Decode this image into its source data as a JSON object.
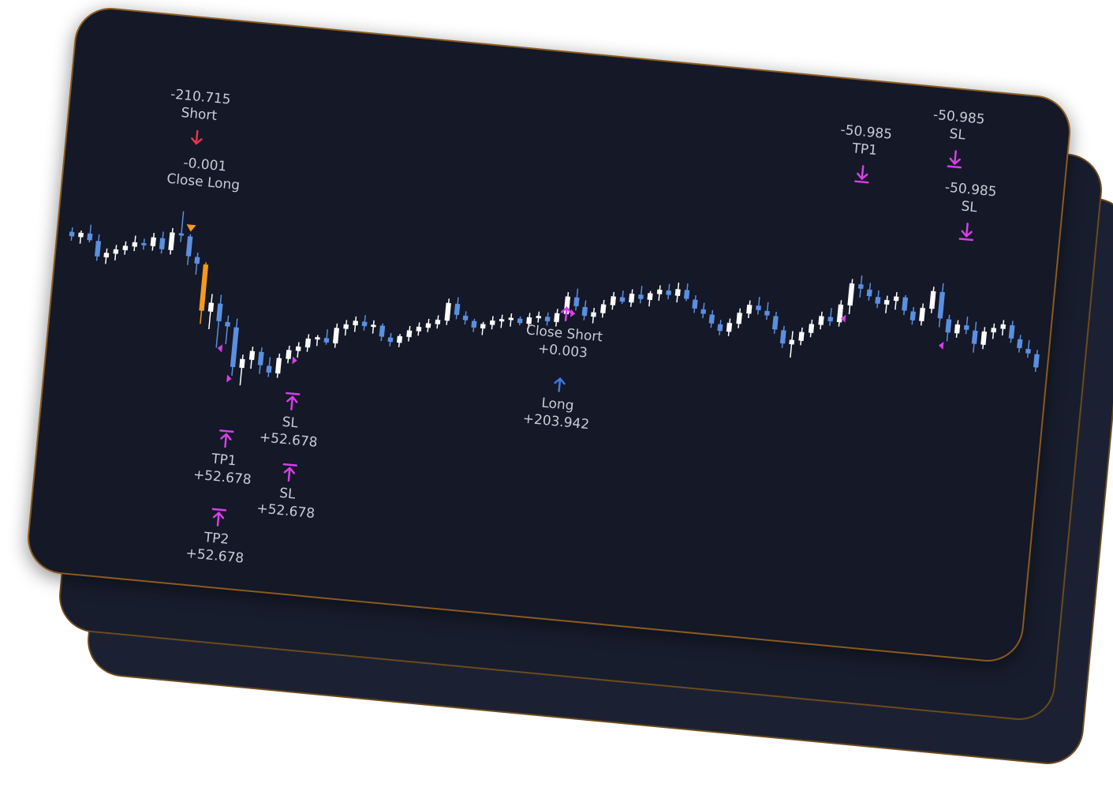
{
  "colors": {
    "background": "#141827",
    "bull": "#ffffff",
    "bear": "#5b8fe0",
    "signal_bar": "#f39a1e",
    "marker": "#d63fe8",
    "short_arrow": "#e8344a",
    "long_arrow": "#3a7be8",
    "text": "#c9ccd6",
    "border": "#8a5a1f"
  },
  "chart_data": {
    "type": "candlestick",
    "title": "",
    "xlabel": "",
    "ylabel": "",
    "grid": false,
    "legend": "none",
    "ylim": [
      0,
      100
    ],
    "candles": [
      {
        "o": 66,
        "h": 68,
        "l": 62,
        "c": 64
      },
      {
        "o": 64,
        "h": 67,
        "l": 61,
        "c": 66
      },
      {
        "o": 66,
        "h": 70,
        "l": 62,
        "c": 63
      },
      {
        "o": 63,
        "h": 66,
        "l": 54,
        "c": 56
      },
      {
        "o": 56,
        "h": 60,
        "l": 53,
        "c": 58
      },
      {
        "o": 58,
        "h": 62,
        "l": 55,
        "c": 60
      },
      {
        "o": 60,
        "h": 64,
        "l": 58,
        "c": 62
      },
      {
        "o": 62,
        "h": 67,
        "l": 60,
        "c": 64
      },
      {
        "o": 64,
        "h": 66,
        "l": 61,
        "c": 63
      },
      {
        "o": 63,
        "h": 69,
        "l": 61,
        "c": 67
      },
      {
        "o": 67,
        "h": 70,
        "l": 60,
        "c": 62
      },
      {
        "o": 62,
        "h": 72,
        "l": 60,
        "c": 70
      },
      {
        "o": 70,
        "h": 80,
        "l": 66,
        "c": 69
      },
      {
        "o": 69,
        "h": 70,
        "l": 56,
        "c": 60
      },
      {
        "o": 60,
        "h": 62,
        "l": 52,
        "c": 57
      },
      {
        "o": 57,
        "h": 58,
        "l": 30,
        "c": 36
      },
      {
        "o": 36,
        "h": 44,
        "l": 28,
        "c": 40
      },
      {
        "o": 40,
        "h": 44,
        "l": 20,
        "c": 32
      },
      {
        "o": 32,
        "h": 35,
        "l": 22,
        "c": 30
      },
      {
        "o": 30,
        "h": 34,
        "l": 8,
        "c": 12
      },
      {
        "o": 12,
        "h": 18,
        "l": 4,
        "c": 16
      },
      {
        "o": 16,
        "h": 22,
        "l": 12,
        "c": 20
      },
      {
        "o": 20,
        "h": 22,
        "l": 10,
        "c": 14
      },
      {
        "o": 14,
        "h": 18,
        "l": 9,
        "c": 11
      },
      {
        "o": 11,
        "h": 20,
        "l": 9,
        "c": 18
      },
      {
        "o": 18,
        "h": 24,
        "l": 16,
        "c": 22
      },
      {
        "o": 22,
        "h": 26,
        "l": 19,
        "c": 24
      },
      {
        "o": 24,
        "h": 30,
        "l": 22,
        "c": 28
      },
      {
        "o": 28,
        "h": 30,
        "l": 25,
        "c": 29
      },
      {
        "o": 29,
        "h": 33,
        "l": 26,
        "c": 27
      },
      {
        "o": 27,
        "h": 36,
        "l": 25,
        "c": 34
      },
      {
        "o": 34,
        "h": 38,
        "l": 31,
        "c": 36
      },
      {
        "o": 36,
        "h": 40,
        "l": 33,
        "c": 38
      },
      {
        "o": 38,
        "h": 41,
        "l": 34,
        "c": 36
      },
      {
        "o": 36,
        "h": 39,
        "l": 33,
        "c": 37
      },
      {
        "o": 37,
        "h": 38,
        "l": 30,
        "c": 32
      },
      {
        "o": 32,
        "h": 34,
        "l": 28,
        "c": 30
      },
      {
        "o": 30,
        "h": 34,
        "l": 28,
        "c": 33
      },
      {
        "o": 33,
        "h": 38,
        "l": 31,
        "c": 36
      },
      {
        "o": 36,
        "h": 40,
        "l": 34,
        "c": 38
      },
      {
        "o": 38,
        "h": 42,
        "l": 36,
        "c": 40
      },
      {
        "o": 40,
        "h": 44,
        "l": 38,
        "c": 42
      },
      {
        "o": 42,
        "h": 52,
        "l": 40,
        "c": 50
      },
      {
        "o": 50,
        "h": 53,
        "l": 43,
        "c": 45
      },
      {
        "o": 45,
        "h": 47,
        "l": 41,
        "c": 43
      },
      {
        "o": 43,
        "h": 44,
        "l": 38,
        "c": 40
      },
      {
        "o": 40,
        "h": 43,
        "l": 37,
        "c": 42
      },
      {
        "o": 42,
        "h": 46,
        "l": 40,
        "c": 44
      },
      {
        "o": 44,
        "h": 47,
        "l": 41,
        "c": 45
      },
      {
        "o": 45,
        "h": 48,
        "l": 42,
        "c": 46
      },
      {
        "o": 46,
        "h": 47,
        "l": 43,
        "c": 44
      },
      {
        "o": 44,
        "h": 49,
        "l": 42,
        "c": 47
      },
      {
        "o": 47,
        "h": 50,
        "l": 45,
        "c": 48
      },
      {
        "o": 48,
        "h": 50,
        "l": 44,
        "c": 46
      },
      {
        "o": 46,
        "h": 52,
        "l": 44,
        "c": 50
      },
      {
        "o": 50,
        "h": 60,
        "l": 48,
        "c": 58
      },
      {
        "o": 58,
        "h": 62,
        "l": 52,
        "c": 54
      },
      {
        "o": 54,
        "h": 57,
        "l": 48,
        "c": 50
      },
      {
        "o": 50,
        "h": 54,
        "l": 47,
        "c": 52
      },
      {
        "o": 52,
        "h": 58,
        "l": 50,
        "c": 56
      },
      {
        "o": 56,
        "h": 62,
        "l": 54,
        "c": 60
      },
      {
        "o": 60,
        "h": 63,
        "l": 57,
        "c": 58
      },
      {
        "o": 58,
        "h": 64,
        "l": 56,
        "c": 62
      },
      {
        "o": 62,
        "h": 66,
        "l": 58,
        "c": 60
      },
      {
        "o": 60,
        "h": 64,
        "l": 57,
        "c": 63
      },
      {
        "o": 63,
        "h": 67,
        "l": 60,
        "c": 65
      },
      {
        "o": 65,
        "h": 68,
        "l": 61,
        "c": 63
      },
      {
        "o": 63,
        "h": 69,
        "l": 60,
        "c": 66
      },
      {
        "o": 66,
        "h": 69,
        "l": 61,
        "c": 62
      },
      {
        "o": 62,
        "h": 64,
        "l": 56,
        "c": 58
      },
      {
        "o": 58,
        "h": 61,
        "l": 54,
        "c": 56
      },
      {
        "o": 56,
        "h": 58,
        "l": 50,
        "c": 52
      },
      {
        "o": 52,
        "h": 54,
        "l": 47,
        "c": 49
      },
      {
        "o": 49,
        "h": 55,
        "l": 47,
        "c": 53
      },
      {
        "o": 53,
        "h": 60,
        "l": 51,
        "c": 58
      },
      {
        "o": 58,
        "h": 64,
        "l": 56,
        "c": 62
      },
      {
        "o": 62,
        "h": 66,
        "l": 58,
        "c": 60
      },
      {
        "o": 60,
        "h": 64,
        "l": 56,
        "c": 58
      },
      {
        "o": 58,
        "h": 60,
        "l": 50,
        "c": 52
      },
      {
        "o": 52,
        "h": 54,
        "l": 44,
        "c": 46
      },
      {
        "o": 46,
        "h": 52,
        "l": 40,
        "c": 48
      },
      {
        "o": 48,
        "h": 54,
        "l": 46,
        "c": 52
      },
      {
        "o": 52,
        "h": 58,
        "l": 50,
        "c": 56
      },
      {
        "o": 56,
        "h": 62,
        "l": 54,
        "c": 60
      },
      {
        "o": 60,
        "h": 64,
        "l": 56,
        "c": 58
      },
      {
        "o": 58,
        "h": 68,
        "l": 56,
        "c": 66
      },
      {
        "o": 66,
        "h": 78,
        "l": 62,
        "c": 76
      },
      {
        "o": 76,
        "h": 80,
        "l": 70,
        "c": 74
      },
      {
        "o": 74,
        "h": 77,
        "l": 69,
        "c": 71
      },
      {
        "o": 71,
        "h": 74,
        "l": 66,
        "c": 68
      },
      {
        "o": 68,
        "h": 72,
        "l": 64,
        "c": 70
      },
      {
        "o": 70,
        "h": 74,
        "l": 66,
        "c": 72
      },
      {
        "o": 72,
        "h": 73,
        "l": 64,
        "c": 66
      },
      {
        "o": 66,
        "h": 68,
        "l": 60,
        "c": 62
      },
      {
        "o": 62,
        "h": 70,
        "l": 60,
        "c": 68
      },
      {
        "o": 68,
        "h": 78,
        "l": 66,
        "c": 76
      },
      {
        "o": 76,
        "h": 80,
        "l": 60,
        "c": 64
      },
      {
        "o": 64,
        "h": 66,
        "l": 54,
        "c": 58
      },
      {
        "o": 58,
        "h": 64,
        "l": 56,
        "c": 62
      },
      {
        "o": 62,
        "h": 66,
        "l": 58,
        "c": 60
      },
      {
        "o": 60,
        "h": 64,
        "l": 50,
        "c": 54
      },
      {
        "o": 54,
        "h": 62,
        "l": 52,
        "c": 60
      },
      {
        "o": 60,
        "h": 64,
        "l": 57,
        "c": 62
      },
      {
        "o": 62,
        "h": 66,
        "l": 59,
        "c": 64
      },
      {
        "o": 64,
        "h": 66,
        "l": 56,
        "c": 58
      },
      {
        "o": 58,
        "h": 60,
        "l": 52,
        "c": 54
      },
      {
        "o": 54,
        "h": 58,
        "l": 50,
        "c": 52
      },
      {
        "o": 52,
        "h": 54,
        "l": 44,
        "c": 46
      }
    ],
    "annotations": [
      {
        "text_lines": [
          "-210.715",
          "Short"
        ],
        "signal": "short",
        "arrow": "down",
        "bar_index": 12
      },
      {
        "text_lines": [
          "-0.001",
          "Close Long"
        ],
        "signal": "close",
        "arrow": "none",
        "bar_index": 13
      },
      {
        "text_lines": [
          "TP1",
          "+52.678"
        ],
        "signal": "tp",
        "arrow": "up",
        "bar_index": 19
      },
      {
        "text_lines": [
          "TP2",
          "+52.678"
        ],
        "signal": "tp",
        "arrow": "up",
        "bar_index": 19
      },
      {
        "text_lines": [
          "SL",
          "+52.678"
        ],
        "signal": "sl",
        "arrow": "up",
        "bar_index": 25
      },
      {
        "text_lines": [
          "SL",
          "+52.678"
        ],
        "signal": "sl",
        "arrow": "up",
        "bar_index": 27
      },
      {
        "text_lines": [
          "Close Short",
          "+0.003"
        ],
        "signal": "close",
        "arrow": "up",
        "bar_index": 55
      },
      {
        "text_lines": [
          "Long",
          "+203.942"
        ],
        "signal": "long",
        "arrow": "up",
        "bar_index": 55
      },
      {
        "text_lines": [
          "-50.985",
          "TP1"
        ],
        "signal": "tp",
        "arrow": "down",
        "bar_index": 86
      },
      {
        "text_lines": [
          "-50.985",
          "SL"
        ],
        "signal": "sl",
        "arrow": "down",
        "bar_index": 96
      },
      {
        "text_lines": [
          "-50.985",
          "SL"
        ],
        "signal": "sl",
        "arrow": "down",
        "bar_index": 97
      }
    ]
  }
}
